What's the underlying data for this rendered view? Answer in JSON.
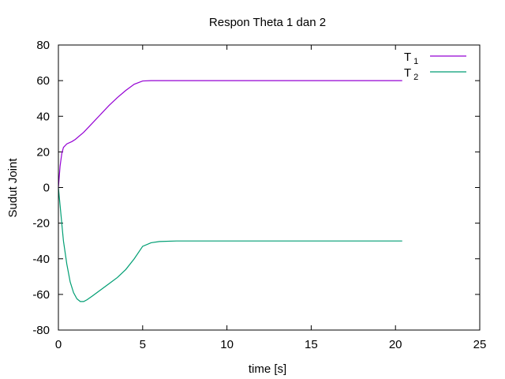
{
  "chart_data": {
    "type": "line",
    "title": "Respon Theta 1 dan 2",
    "xlabel": "time [s]",
    "ylabel": "Sudut Joint",
    "xlim": [
      0,
      25
    ],
    "ylim": [
      -80,
      80
    ],
    "xticks": [
      0,
      5,
      10,
      15,
      20,
      25
    ],
    "yticks": [
      -80,
      -60,
      -40,
      -20,
      0,
      20,
      40,
      60,
      80
    ],
    "grid": false,
    "legend_position": "top-right",
    "series": [
      {
        "name": "T",
        "subscript": "1",
        "color": "#9400d3",
        "x": [
          0,
          0.1,
          0.2,
          0.3,
          0.5,
          0.8,
          1.0,
          1.5,
          2.0,
          2.5,
          3.0,
          3.5,
          4.0,
          4.5,
          5.0,
          5.5,
          6,
          8,
          10,
          12,
          15,
          18,
          20.4
        ],
        "y": [
          0,
          12,
          19,
          22.5,
          24.5,
          25.8,
          27,
          31,
          36,
          41,
          46,
          50.5,
          54.5,
          58,
          59.8,
          60,
          60,
          60,
          60,
          60,
          60,
          60,
          60
        ]
      },
      {
        "name": "T",
        "subscript": "2",
        "color": "#009e73",
        "x": [
          0,
          0.1,
          0.2,
          0.3,
          0.5,
          0.7,
          0.9,
          1.1,
          1.3,
          1.5,
          1.7,
          2.0,
          2.5,
          3.0,
          3.5,
          4.0,
          4.5,
          5.0,
          5.5,
          6.0,
          7,
          8,
          10,
          15,
          20.4
        ],
        "y": [
          0,
          -10,
          -20,
          -30,
          -43,
          -53,
          -59,
          -62.5,
          -64,
          -64,
          -63,
          -61,
          -57.5,
          -54,
          -50.5,
          -46,
          -40,
          -33,
          -31,
          -30.3,
          -30,
          -30,
          -30,
          -30,
          -30
        ]
      }
    ]
  }
}
